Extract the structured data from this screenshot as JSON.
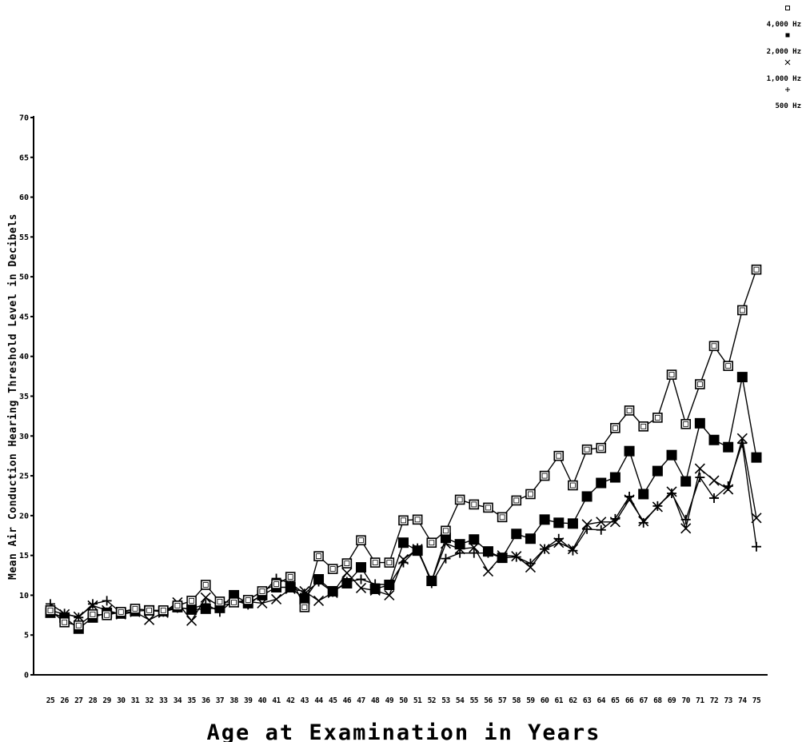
{
  "chart_data": {
    "type": "line",
    "xlabel": "Age at Examination in Years",
    "ylabel": "Mean Air Conduction Hearing Threshold Level in Decibels",
    "ylim": [
      0,
      70
    ],
    "yticks": [
      0,
      5,
      10,
      15,
      20,
      25,
      30,
      35,
      40,
      45,
      50,
      55,
      60,
      65,
      70
    ],
    "ytick_labels": [
      "0",
      "5",
      "10",
      "15",
      "20",
      "25",
      "30",
      "35",
      "40",
      "45",
      "50",
      "55",
      "60",
      "65",
      "70"
    ],
    "legend_position": "top-right",
    "grid": false,
    "x": [
      25,
      26,
      27,
      28,
      29,
      30,
      31,
      32,
      33,
      34,
      35,
      36,
      37,
      38,
      39,
      40,
      41,
      42,
      43,
      44,
      45,
      46,
      47,
      48,
      49,
      50,
      51,
      52,
      53,
      54,
      55,
      56,
      57,
      58,
      59,
      60,
      61,
      62,
      63,
      64,
      65,
      66,
      67,
      68,
      69,
      70,
      71,
      72,
      73,
      74,
      75
    ],
    "series": [
      {
        "name": "4,000 Hz",
        "marker": "open-square",
        "values": [
          8.1,
          6.6,
          6.2,
          7.6,
          7.5,
          7.9,
          8.3,
          8.1,
          8.1,
          8.7,
          9.3,
          11.3,
          9.2,
          9.1,
          9.4,
          10.5,
          11.4,
          12.3,
          8.5,
          14.9,
          13.3,
          14.0,
          16.9,
          14.1,
          14.1,
          19.4,
          19.5,
          16.6,
          18.1,
          22.0,
          21.4,
          21.0,
          19.8,
          21.9,
          22.7,
          25.0,
          27.5,
          23.8,
          28.3,
          28.5,
          31.0,
          33.2,
          31.2,
          32.3,
          37.7,
          31.5,
          36.5,
          41.3,
          38.8,
          45.8,
          50.9
        ]
      },
      {
        "name": "2,000 Hz",
        "marker": "filled-square",
        "values": [
          7.8,
          7.2,
          5.8,
          7.2,
          7.8,
          7.7,
          8.0,
          8.1,
          8.0,
          8.5,
          8.2,
          8.3,
          8.4,
          10.0,
          9.0,
          10.0,
          11.0,
          11.0,
          9.5,
          12.0,
          10.5,
          11.5,
          13.5,
          10.8,
          11.3,
          16.6,
          15.6,
          11.8,
          17.2,
          16.4,
          17.0,
          15.5,
          14.7,
          17.7,
          17.1,
          19.5,
          19.1,
          19.0,
          22.4,
          24.1,
          24.8,
          28.1,
          22.7,
          25.6,
          27.6,
          24.3,
          31.6,
          29.5,
          28.6,
          37.4,
          27.3
        ]
      },
      {
        "name": "1,000 Hz",
        "marker": "x",
        "values": [
          8.1,
          7.6,
          7.3,
          8.7,
          8.1,
          7.6,
          7.9,
          6.9,
          7.8,
          9.1,
          6.8,
          9.7,
          8.6,
          9.1,
          9.2,
          9.0,
          9.5,
          10.8,
          10.5,
          9.3,
          10.3,
          12.8,
          10.9,
          10.6,
          10.0,
          14.5,
          15.8,
          11.8,
          16.5,
          15.8,
          16.0,
          13.0,
          15.0,
          14.9,
          13.5,
          15.8,
          16.6,
          15.8,
          18.9,
          19.2,
          19.2,
          22.0,
          19.3,
          21.1,
          23.0,
          18.4,
          25.9,
          24.4,
          23.3,
          29.7,
          19.7
        ]
      },
      {
        "name": "500 Hz",
        "marker": "plus",
        "values": [
          8.9,
          7.7,
          7.2,
          8.9,
          9.3,
          7.8,
          8.3,
          8.1,
          7.9,
          8.4,
          8.3,
          8.9,
          7.9,
          9.4,
          8.8,
          10.1,
          12.1,
          11.5,
          10.2,
          11.7,
          10.4,
          11.7,
          12.0,
          11.4,
          11.3,
          14.1,
          15.9,
          11.5,
          14.6,
          15.3,
          15.3,
          15.3,
          14.7,
          14.8,
          14.0,
          15.8,
          17.1,
          15.6,
          18.3,
          18.2,
          19.6,
          22.4,
          19.1,
          21.2,
          22.8,
          19.5,
          24.8,
          22.2,
          23.7,
          29.1,
          16.1
        ]
      }
    ]
  }
}
